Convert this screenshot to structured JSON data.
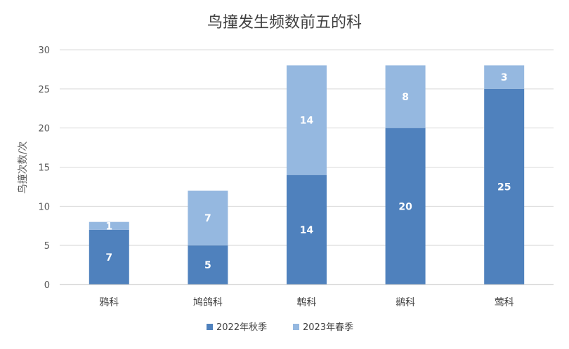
{
  "chart_data": {
    "type": "bar",
    "stacked": true,
    "title": "鸟撞发生频数前五的科",
    "xlabel": "",
    "ylabel": "鸟撞次数/次",
    "ylim": [
      0,
      30
    ],
    "yticks": [
      0,
      5,
      10,
      15,
      20,
      25,
      30
    ],
    "categories": [
      "鸦科",
      "鸠鸽科",
      "鹎科",
      "鹟科",
      "莺科"
    ],
    "series": [
      {
        "name": "2022年秋季",
        "values": [
          7,
          5,
          14,
          20,
          25
        ],
        "color": "#4f81bd"
      },
      {
        "name": "2023年春季",
        "values": [
          1,
          7,
          14,
          8,
          3
        ],
        "color": "#95b8e0"
      }
    ],
    "grid": true,
    "legend_position": "bottom"
  }
}
